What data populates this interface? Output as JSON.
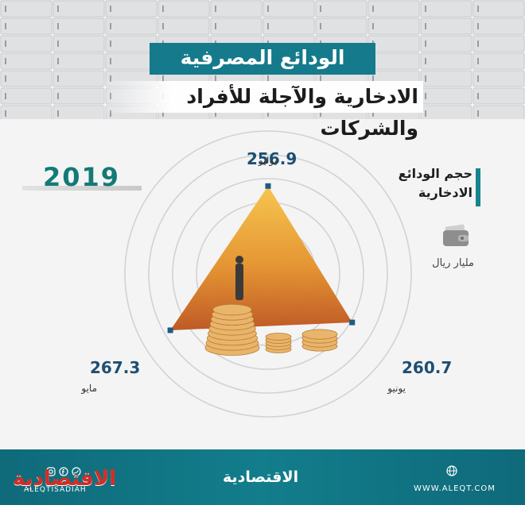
{
  "title": "الودائع المصرفية",
  "subtitle": "الادخارية والآجلة للأفراد والشركات",
  "year": "2019",
  "legend_label": "حجم الودائع الادخارية",
  "unit": "مليار ريال",
  "colors": {
    "accent": "#147a8c",
    "value": "#1d4f72",
    "year": "#137a78",
    "triangle_top": "#f2b23a",
    "triangle_bottom": "#c75a1f",
    "logo": "#d62c25"
  },
  "chart_data": {
    "type": "radar",
    "title": "الودائع المصرفية",
    "categories": [
      "يوليو",
      "يونيو",
      "مايو"
    ],
    "values": [
      256.9,
      260.7,
      267.3
    ],
    "value_labels": [
      "256.9",
      "260.7",
      "267.3"
    ],
    "rings": 6,
    "grid": true
  },
  "footer": {
    "brand_left": "الاقتصادية",
    "handle": "ALEQTISADIAH",
    "brand_center": "الاقتصادية",
    "url": "WWW.ALEQT.COM",
    "icons": [
      "instagram-icon",
      "facebook-icon",
      "twitter-icon",
      "globe-icon"
    ]
  }
}
